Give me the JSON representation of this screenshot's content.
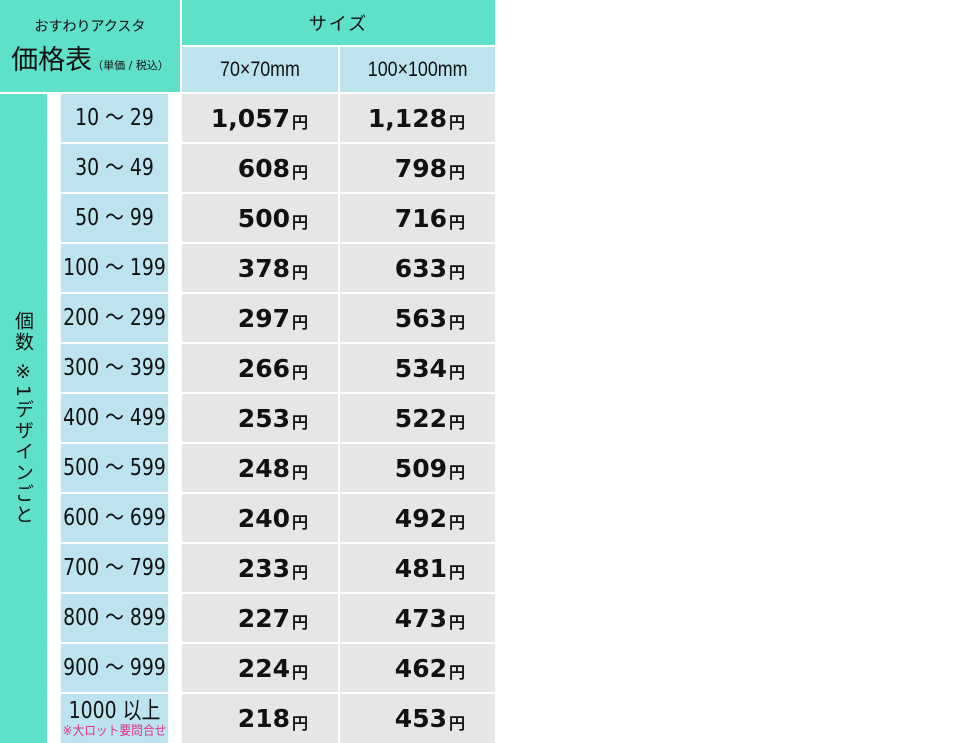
{
  "header": {
    "subtitle": "おすわりアクスタ",
    "title": "価格表",
    "title_note": "（単価 / 税込）",
    "size_label": "サイズ",
    "sizes": [
      "70×70mm",
      "100×100mm"
    ]
  },
  "quantity_label": "個数 ※1デザインごと",
  "currency": "円",
  "rows": [
    {
      "range": "10 ～ 29",
      "p1": "1,057",
      "p2": "1,128"
    },
    {
      "range": "30 ～ 49",
      "p1": "608",
      "p2": "798"
    },
    {
      "range": "50 ～ 99",
      "p1": "500",
      "p2": "716"
    },
    {
      "range": "100 ～ 199",
      "p1": "378",
      "p2": "633"
    },
    {
      "range": "200 ～ 299",
      "p1": "297",
      "p2": "563"
    },
    {
      "range": "300 ～ 399",
      "p1": "266",
      "p2": "534"
    },
    {
      "range": "400 ～ 499",
      "p1": "253",
      "p2": "522"
    },
    {
      "range": "500 ～ 599",
      "p1": "248",
      "p2": "509"
    },
    {
      "range": "600 ～ 699",
      "p1": "240",
      "p2": "492"
    },
    {
      "range": "700 ～ 799",
      "p1": "233",
      "p2": "481"
    },
    {
      "range": "800 ～ 899",
      "p1": "227",
      "p2": "473"
    },
    {
      "range": "900 ～ 999",
      "p1": "224",
      "p2": "462"
    },
    {
      "range": "1000 以上",
      "note": "※大ロット要問合せ",
      "p1": "218",
      "p2": "453"
    }
  ],
  "colors": {
    "teal": "#5ee0c9",
    "blue": "#bde3ef",
    "grey": "#e6e6e6",
    "note": "#e0338a"
  }
}
